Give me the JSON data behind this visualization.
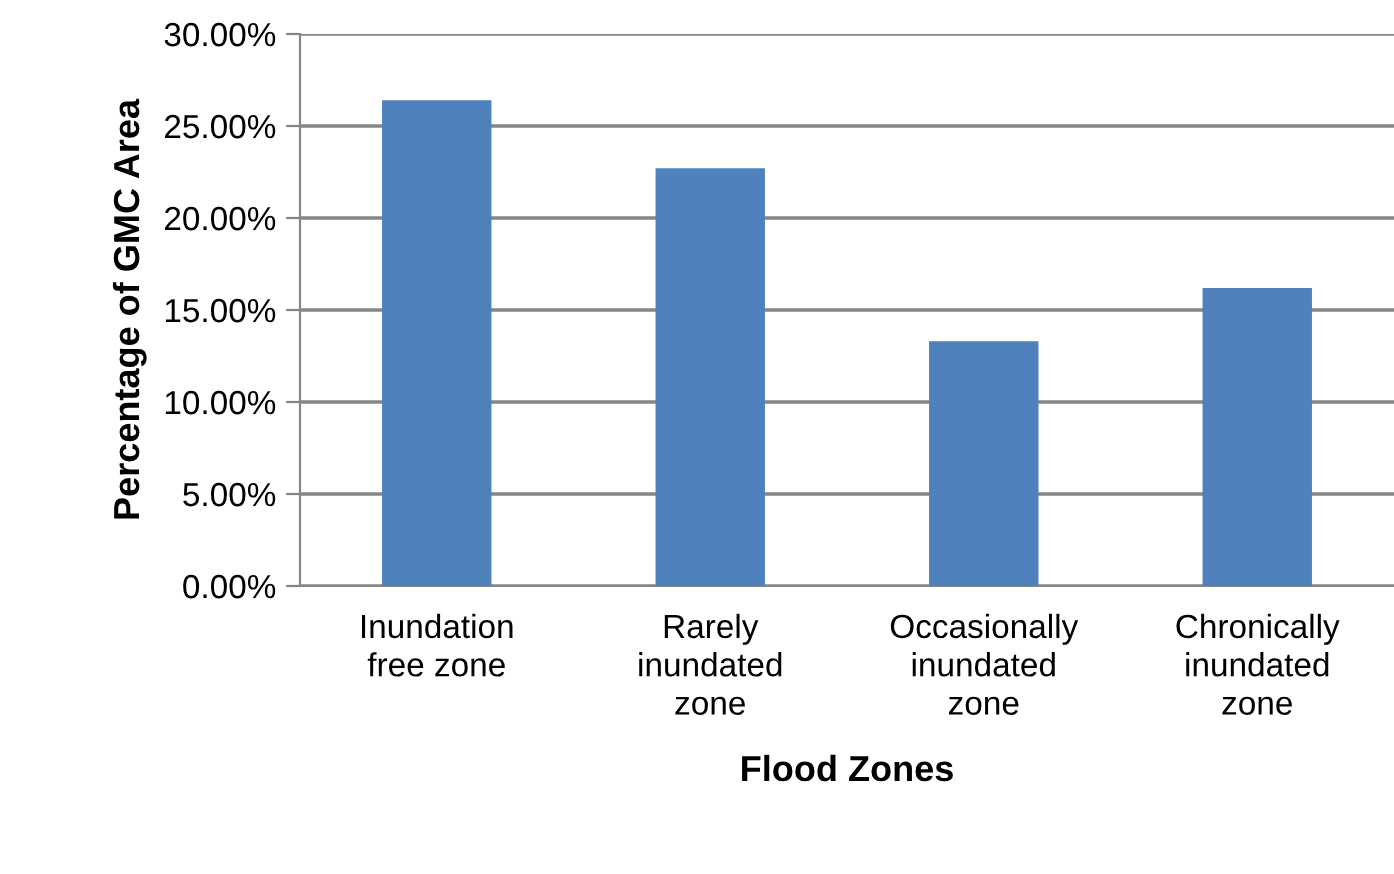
{
  "chart_data": {
    "type": "bar",
    "xlabel": "Flood Zones",
    "ylabel": "Percentage of GMC Area",
    "categories": [
      "Inundation\nfree zone",
      "Rarely\ninundated\nzone",
      "Occasionally\ninundated\nzone",
      "Chronically\ninundated\nzone"
    ],
    "values": [
      26.4,
      22.7,
      13.3,
      16.2
    ],
    "color": "#4f81bd",
    "ylim": [
      0,
      30
    ],
    "yticks": [
      {
        "value": 0,
        "label": "0.00%"
      },
      {
        "value": 5,
        "label": "5.00%"
      },
      {
        "value": 10,
        "label": "10.00%"
      },
      {
        "value": 15,
        "label": "15.00%"
      },
      {
        "value": 20,
        "label": "20.00%"
      },
      {
        "value": 25,
        "label": "25.00%"
      },
      {
        "value": 30,
        "label": "30.00%"
      }
    ],
    "grid": "y",
    "legend": false
  }
}
